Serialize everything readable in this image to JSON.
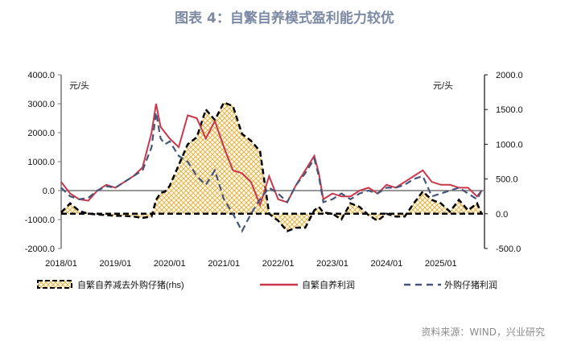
{
  "title": "图表 4：自繁自养模式盈利能力较优",
  "source": "资料来源：WIND，兴业研究",
  "colors": {
    "self": "#c8384a",
    "outside": "#45557a",
    "diff_fill": "#e6b84a",
    "diff_line": "#000000",
    "title": "#7c8aa5"
  },
  "chart_data": {
    "type": "line",
    "title": "自繁自养模式盈利能力较优",
    "xlabel": "",
    "ylabel_left": "元/头",
    "ylabel_right": "元/头",
    "ylim_left": [
      -2000,
      4000
    ],
    "ylim_right": [
      -500,
      2000
    ],
    "yticks_left": [
      "4000.0",
      "3000.0",
      "2000.0",
      "1000.0",
      "0.0",
      "-1000.0",
      "-2000.0"
    ],
    "yticks_right": [
      "2000.0",
      "1500.0",
      "1000.0",
      "500.0",
      "0.0",
      "-500.0"
    ],
    "xticks": [
      "2018/01",
      "2019/01",
      "2020/01",
      "2021/01",
      "2022/01",
      "2023/01",
      "2024/01",
      "2025/01"
    ],
    "legend_position": "bottom",
    "x": [
      "2018/01",
      "2018/03",
      "2018/05",
      "2018/07",
      "2018/09",
      "2018/11",
      "2019/01",
      "2019/03",
      "2019/05",
      "2019/07",
      "2019/09",
      "2019/10",
      "2019/11",
      "2019/12",
      "2020/01",
      "2020/03",
      "2020/05",
      "2020/07",
      "2020/09",
      "2020/11",
      "2021/01",
      "2021/03",
      "2021/05",
      "2021/07",
      "2021/09",
      "2021/11",
      "2022/01",
      "2022/03",
      "2022/05",
      "2022/07",
      "2022/09",
      "2022/10",
      "2022/11",
      "2023/01",
      "2023/03",
      "2023/05",
      "2023/07",
      "2023/09",
      "2023/11",
      "2024/01",
      "2024/03",
      "2024/05",
      "2024/07",
      "2024/09",
      "2024/11",
      "2025/01",
      "2025/03",
      "2025/05",
      "2025/07",
      "2025/09",
      "2025/10"
    ],
    "series": [
      {
        "name": "自繁自养减去外购仔猪(rhs)",
        "axis": "right",
        "style": "dashed-black-hatched-area",
        "values": [
          20,
          150,
          40,
          0,
          -10,
          -20,
          -30,
          -30,
          -40,
          -60,
          -40,
          200,
          300,
          320,
          400,
          700,
          1000,
          1100,
          1500,
          1350,
          1600,
          1550,
          1150,
          1050,
          900,
          0,
          -100,
          -250,
          -200,
          -200,
          50,
          100,
          20,
          0,
          -80,
          150,
          100,
          -20,
          -100,
          0,
          -40,
          -40,
          150,
          320,
          200,
          150,
          30,
          200,
          50,
          150,
          0
        ]
      },
      {
        "name": "自繁自养利润",
        "axis": "left",
        "style": "solid-red",
        "values": [
          300,
          -100,
          -300,
          -350,
          0,
          200,
          100,
          300,
          500,
          800,
          2000,
          3000,
          2200,
          2000,
          1800,
          1500,
          2600,
          2500,
          1800,
          2400,
          1500,
          700,
          600,
          300,
          -500,
          500,
          -300,
          -400,
          200,
          700,
          1200,
          600,
          -300,
          -100,
          -200,
          -200,
          0,
          100,
          -100,
          200,
          100,
          300,
          500,
          700,
          300,
          200,
          200,
          100,
          100,
          -200,
          0
        ]
      },
      {
        "name": "外购仔猪利润",
        "axis": "left",
        "style": "dashed-blue",
        "values": [
          100,
          -200,
          -300,
          -250,
          0,
          150,
          100,
          300,
          500,
          700,
          1500,
          2700,
          1800,
          1600,
          1700,
          1200,
          1000,
          500,
          200,
          700,
          -300,
          -800,
          -1400,
          -800,
          -300,
          100,
          -100,
          -400,
          200,
          600,
          1100,
          500,
          -400,
          -300,
          -100,
          -300,
          -100,
          0,
          -100,
          100,
          100,
          200,
          400,
          500,
          -200,
          -100,
          0,
          100,
          -100,
          -300,
          0
        ]
      }
    ]
  },
  "legend": [
    {
      "label": "自繁自养减去外购仔猪(rhs)"
    },
    {
      "label": "自繁自养利润"
    },
    {
      "label": "外购仔猪利润"
    }
  ]
}
